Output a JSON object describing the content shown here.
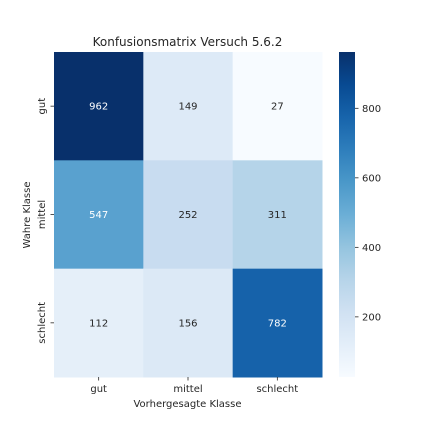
{
  "chart_data": {
    "type": "heatmap",
    "title": "Konfusionsmatrix Versuch 5.6.2",
    "xlabel": "Vorhergesagte Klasse",
    "ylabel": "Wahre Klasse",
    "x_categories": [
      "gut",
      "mittel",
      "schlecht"
    ],
    "y_categories": [
      "gut",
      "mittel",
      "schlecht"
    ],
    "values": [
      [
        962,
        149,
        27
      ],
      [
        547,
        252,
        311
      ],
      [
        112,
        156,
        782
      ]
    ],
    "colormap": "Blues",
    "color_range": [
      27,
      962
    ],
    "colorbar_ticks": [
      200,
      400,
      600,
      800
    ],
    "grid": false
  }
}
